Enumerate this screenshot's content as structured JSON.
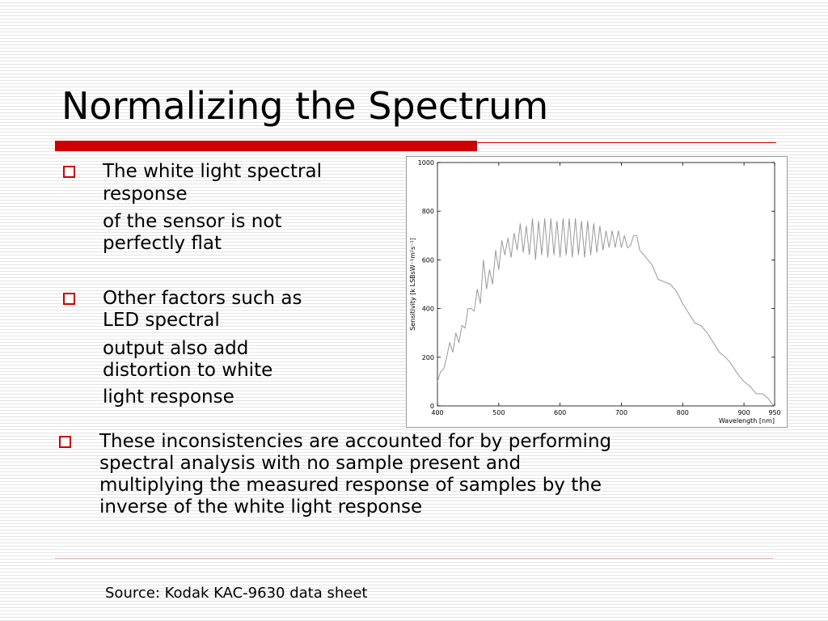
{
  "title": "Normalizing the Spectrum",
  "bullets": [
    {
      "lines": [
        "The white light spectral",
        "response",
        "of the sensor is not",
        "perfectly flat"
      ]
    },
    {
      "lines": [
        "Other factors such as",
        "LED spectral",
        "output also add",
        "distortion to white",
        "light response"
      ]
    },
    {
      "lines": [
        "These inconsistencies are accounted for by performing",
        "spectral analysis with no sample present and",
        "multiplying the measured response of samples by the",
        "inverse of the white light response"
      ]
    }
  ],
  "source": "Source: Kodak KAC-9630 data sheet",
  "chart_data": {
    "type": "line",
    "color": "#999999",
    "x_label": "Wavelength [nm]",
    "y_label": "Sensitivity [k LSBsW⁻¹m²s⁻¹]",
    "xlim": [
      400,
      950
    ],
    "xticks": [
      400,
      500,
      600,
      700,
      800,
      900,
      950
    ],
    "ylim": [
      0,
      1000
    ],
    "yticks": [
      0,
      200,
      400,
      600,
      800,
      1000
    ],
    "x": [
      400,
      405,
      410,
      415,
      420,
      425,
      430,
      435,
      440,
      445,
      450,
      455,
      460,
      465,
      470,
      475,
      480,
      485,
      490,
      495,
      500,
      505,
      510,
      515,
      520,
      525,
      530,
      535,
      540,
      545,
      550,
      555,
      560,
      565,
      570,
      575,
      580,
      585,
      590,
      595,
      600,
      605,
      610,
      615,
      620,
      625,
      630,
      635,
      640,
      645,
      650,
      655,
      660,
      665,
      670,
      675,
      680,
      685,
      690,
      695,
      700,
      705,
      710,
      715,
      720,
      725,
      730,
      740,
      750,
      760,
      770,
      780,
      790,
      800,
      810,
      820,
      830,
      840,
      850,
      860,
      870,
      880,
      890,
      900,
      910,
      920,
      930,
      940,
      945,
      950
    ],
    "values": [
      100,
      140,
      150,
      200,
      260,
      220,
      300,
      260,
      330,
      320,
      400,
      400,
      390,
      480,
      420,
      600,
      480,
      560,
      500,
      640,
      560,
      680,
      620,
      690,
      610,
      710,
      640,
      750,
      630,
      740,
      620,
      770,
      600,
      760,
      620,
      770,
      610,
      770,
      620,
      760,
      610,
      770,
      620,
      770,
      610,
      770,
      620,
      760,
      610,
      760,
      620,
      750,
      630,
      740,
      640,
      720,
      650,
      720,
      650,
      720,
      650,
      700,
      650,
      660,
      700,
      700,
      640,
      610,
      580,
      520,
      510,
      500,
      470,
      420,
      380,
      340,
      330,
      300,
      260,
      220,
      200,
      170,
      130,
      100,
      80,
      50,
      50,
      30,
      10,
      0
    ]
  }
}
